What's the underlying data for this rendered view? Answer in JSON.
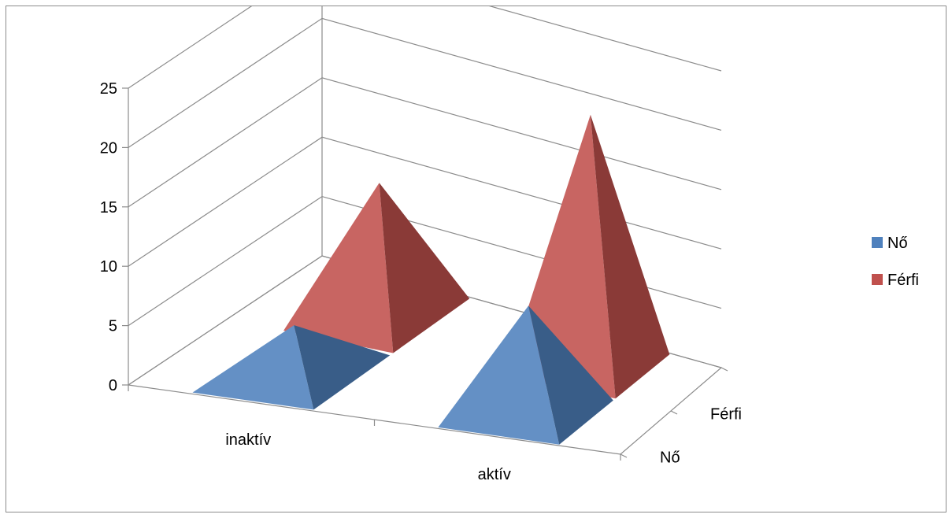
{
  "chart_data": {
    "type": "bar",
    "subtype": "3d-pyramid",
    "title": "",
    "categories": [
      "inaktív",
      "aktív"
    ],
    "depth_categories": [
      "Nő",
      "Férfi"
    ],
    "series": [
      {
        "name": "Nő",
        "values": [
          4,
          9
        ],
        "color": "#4f81bd"
      },
      {
        "name": "Férfi",
        "values": [
          11,
          21
        ],
        "color": "#c0504d"
      }
    ],
    "y_ticks": [
      "0",
      "5",
      "10",
      "15",
      "20",
      "25"
    ],
    "ylim": [
      0,
      25
    ],
    "grid": true,
    "legend_position": "right"
  }
}
